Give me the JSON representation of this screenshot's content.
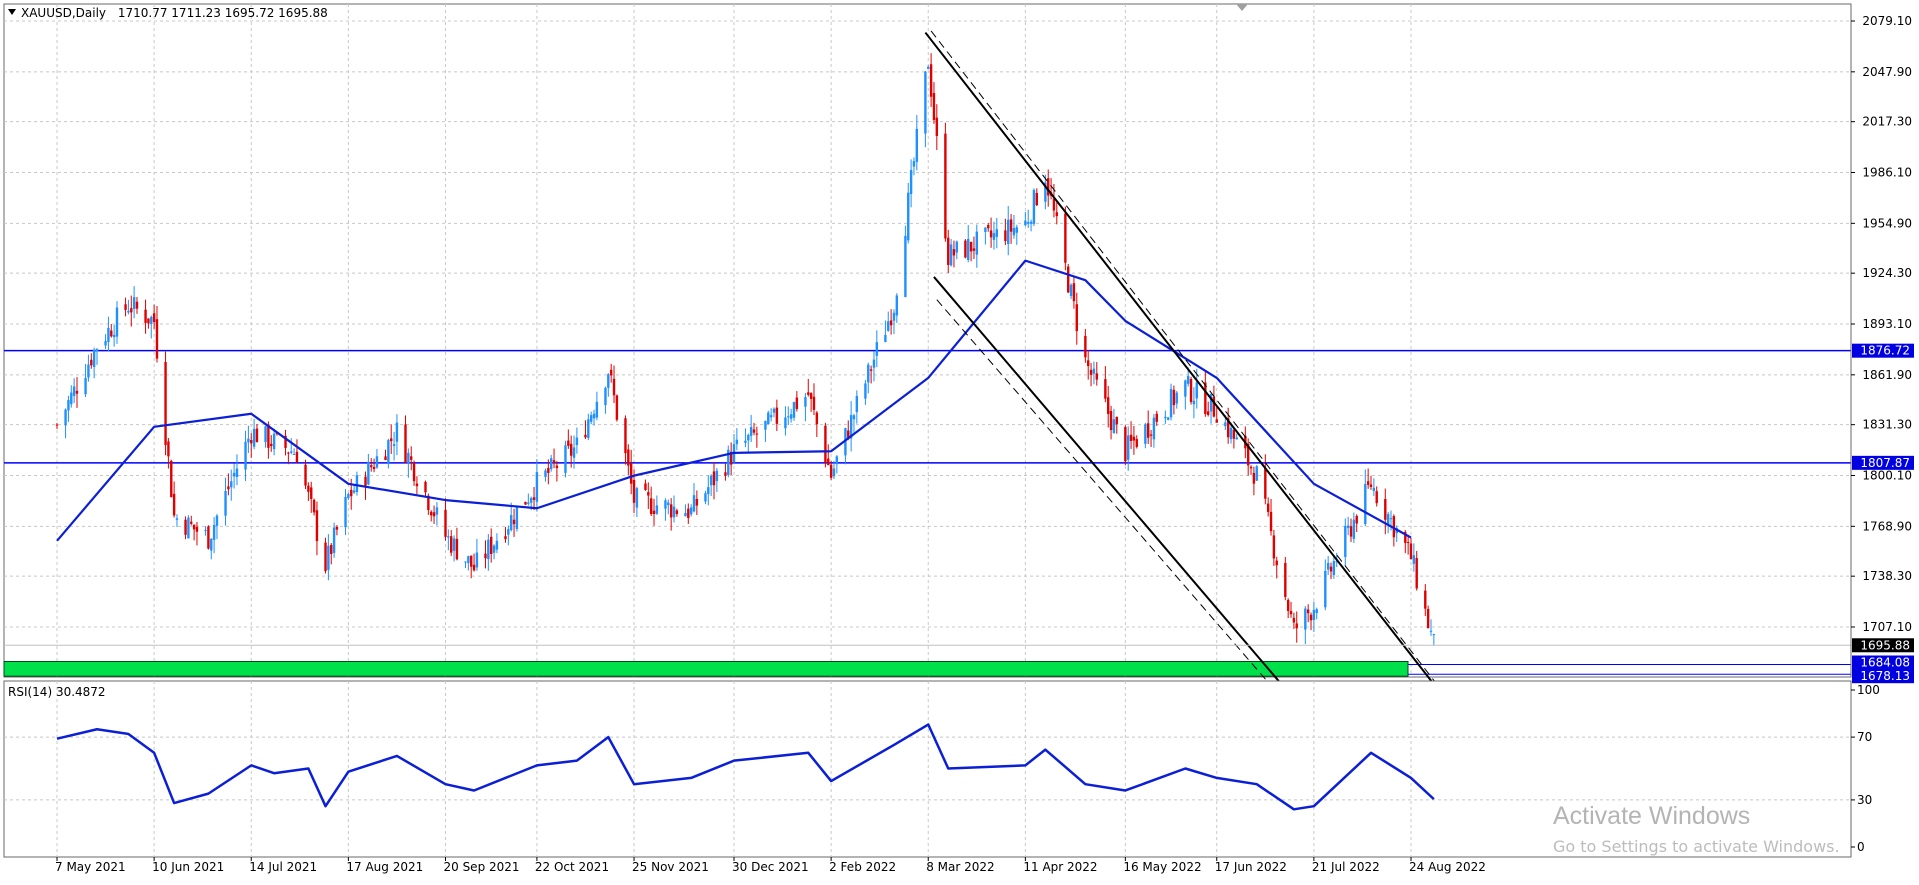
{
  "header": {
    "symbol_label": "XAUUSD,Daily",
    "ohlc": "1710.77 1711.23 1695.72 1695.88"
  },
  "rsi_panel": {
    "label": "RSI(14) 30.4872"
  },
  "watermark": {
    "title": "Activate Windows",
    "subtitle": "Go to Settings to activate Windows."
  },
  "colors": {
    "bull": "#1e90ff",
    "bear": "#e00000",
    "ma": "#0b1fd6",
    "level_line": "#0000ff",
    "channel": "#000000",
    "support_zone": "#00e04a",
    "rsi": "#0b1fd6",
    "grid": "#c8c8c8",
    "price_tag_bg": "#0000e0",
    "current_tag_bg": "#000000"
  },
  "chart_data": [
    {
      "type": "candlestick",
      "symbol": "XAUUSD",
      "timeframe": "Daily",
      "ylim": [
        1665,
        2090
      ],
      "y_ticks": [
        2079.1,
        2047.9,
        2017.3,
        1986.1,
        1954.9,
        1924.3,
        1893.1,
        1861.9,
        1831.3,
        1800.1,
        1768.9,
        1738.3,
        1707.1
      ],
      "x_ticks": [
        "7 May 2021",
        "10 Jun 2021",
        "14 Jul 2021",
        "17 Aug 2021",
        "20 Sep 2021",
        "22 Oct 2021",
        "25 Nov 2021",
        "30 Dec 2021",
        "2 Feb 2022",
        "8 Mar 2022",
        "11 Apr 2022",
        "16 May 2022",
        "17 Jun 2022",
        "21 Jul 2022",
        "24 Aug 2022"
      ],
      "close_path": [
        {
          "date": "2021-05-07",
          "close": 1831
        },
        {
          "date": "2021-05-21",
          "close": 1880
        },
        {
          "date": "2021-06-01",
          "close": 1905
        },
        {
          "date": "2021-06-10",
          "close": 1895
        },
        {
          "date": "2021-06-17",
          "close": 1775
        },
        {
          "date": "2021-06-29",
          "close": 1762
        },
        {
          "date": "2021-07-14",
          "close": 1827
        },
        {
          "date": "2021-07-30",
          "close": 1814
        },
        {
          "date": "2021-08-09",
          "close": 1745
        },
        {
          "date": "2021-08-17",
          "close": 1787
        },
        {
          "date": "2021-09-03",
          "close": 1827
        },
        {
          "date": "2021-09-20",
          "close": 1763
        },
        {
          "date": "2021-09-30",
          "close": 1743
        },
        {
          "date": "2021-10-22",
          "close": 1795
        },
        {
          "date": "2021-11-05",
          "close": 1818
        },
        {
          "date": "2021-11-16",
          "close": 1865
        },
        {
          "date": "2021-11-25",
          "close": 1785
        },
        {
          "date": "2021-12-15",
          "close": 1778
        },
        {
          "date": "2021-12-30",
          "close": 1815
        },
        {
          "date": "2022-01-25",
          "close": 1850
        },
        {
          "date": "2022-02-02",
          "close": 1800
        },
        {
          "date": "2022-02-24",
          "close": 1905
        },
        {
          "date": "2022-03-08",
          "close": 2055
        },
        {
          "date": "2022-03-15",
          "close": 1935
        },
        {
          "date": "2022-04-11",
          "close": 1955
        },
        {
          "date": "2022-04-18",
          "close": 1985
        },
        {
          "date": "2022-05-02",
          "close": 1870
        },
        {
          "date": "2022-05-16",
          "close": 1815
        },
        {
          "date": "2022-06-06",
          "close": 1855
        },
        {
          "date": "2022-06-17",
          "close": 1840
        },
        {
          "date": "2022-07-01",
          "close": 1800
        },
        {
          "date": "2022-07-14",
          "close": 1705
        },
        {
          "date": "2022-07-21",
          "close": 1720
        },
        {
          "date": "2022-08-10",
          "close": 1795
        },
        {
          "date": "2022-08-24",
          "close": 1750
        },
        {
          "date": "2022-09-01",
          "close": 1695.88
        }
      ],
      "moving_average": [
        {
          "date": "2021-05-07",
          "value": 1760
        },
        {
          "date": "2021-06-10",
          "value": 1830
        },
        {
          "date": "2021-07-14",
          "value": 1838
        },
        {
          "date": "2021-08-17",
          "value": 1795
        },
        {
          "date": "2021-09-20",
          "value": 1785
        },
        {
          "date": "2021-10-22",
          "value": 1780
        },
        {
          "date": "2021-11-25",
          "value": 1800
        },
        {
          "date": "2021-12-30",
          "value": 1814
        },
        {
          "date": "2022-02-02",
          "value": 1815
        },
        {
          "date": "2022-03-08",
          "value": 1860
        },
        {
          "date": "2022-04-11",
          "value": 1932
        },
        {
          "date": "2022-05-02",
          "value": 1920
        },
        {
          "date": "2022-05-16",
          "value": 1895
        },
        {
          "date": "2022-06-17",
          "value": 1860
        },
        {
          "date": "2022-07-21",
          "value": 1795
        },
        {
          "date": "2022-08-24",
          "value": 1762
        }
      ],
      "horizontal_levels": [
        1876.72,
        1807.87
      ],
      "support_zone": [
        1678.13,
        1684.08
      ],
      "price_tags": [
        {
          "value": 1876.72,
          "label": "1876.72",
          "style": "level"
        },
        {
          "value": 1807.87,
          "label": "1807.87",
          "style": "level"
        },
        {
          "value": 1695.88,
          "label": "1695.88",
          "style": "current"
        },
        {
          "value": 1684.08,
          "label": "1684.08",
          "style": "level"
        },
        {
          "value": 1678.13,
          "label": "1678.13",
          "style": "level"
        }
      ],
      "channel_lines": [
        {
          "from": {
            "date": "2022-03-07",
            "price": 2072
          },
          "to": {
            "date": "2022-09-05",
            "price": 1663
          },
          "style": "solid"
        },
        {
          "from": {
            "date": "2022-03-10",
            "price": 1922
          },
          "to": {
            "date": "2022-07-14",
            "price": 1663
          },
          "style": "solid"
        },
        {
          "from": {
            "date": "2022-03-09",
            "price": 2073
          },
          "to": {
            "date": "2022-09-06",
            "price": 1663
          },
          "style": "dashed"
        },
        {
          "from": {
            "date": "2022-03-11",
            "price": 1908
          },
          "to": {
            "date": "2022-07-10",
            "price": 1663
          },
          "style": "dashed"
        }
      ]
    },
    {
      "type": "line",
      "indicator": "RSI(14)",
      "ylim": [
        0,
        100
      ],
      "y_ticks": [
        100,
        70,
        30,
        0
      ],
      "series": [
        {
          "values": [
            {
              "date": "2021-05-07",
              "value": 69
            },
            {
              "date": "2021-05-21",
              "value": 75
            },
            {
              "date": "2021-06-01",
              "value": 72
            },
            {
              "date": "2021-06-10",
              "value": 60
            },
            {
              "date": "2021-06-17",
              "value": 28
            },
            {
              "date": "2021-06-29",
              "value": 34
            },
            {
              "date": "2021-07-14",
              "value": 52
            },
            {
              "date": "2021-07-22",
              "value": 47
            },
            {
              "date": "2021-08-03",
              "value": 50
            },
            {
              "date": "2021-08-09",
              "value": 26
            },
            {
              "date": "2021-08-17",
              "value": 48
            },
            {
              "date": "2021-09-03",
              "value": 58
            },
            {
              "date": "2021-09-20",
              "value": 40
            },
            {
              "date": "2021-09-30",
              "value": 36
            },
            {
              "date": "2021-10-22",
              "value": 52
            },
            {
              "date": "2021-11-05",
              "value": 55
            },
            {
              "date": "2021-11-16",
              "value": 70
            },
            {
              "date": "2021-11-25",
              "value": 40
            },
            {
              "date": "2021-12-15",
              "value": 44
            },
            {
              "date": "2021-12-30",
              "value": 55
            },
            {
              "date": "2022-01-25",
              "value": 60
            },
            {
              "date": "2022-02-02",
              "value": 42
            },
            {
              "date": "2022-02-24",
              "value": 65
            },
            {
              "date": "2022-03-08",
              "value": 78
            },
            {
              "date": "2022-03-15",
              "value": 50
            },
            {
              "date": "2022-04-11",
              "value": 52
            },
            {
              "date": "2022-04-18",
              "value": 62
            },
            {
              "date": "2022-05-02",
              "value": 40
            },
            {
              "date": "2022-05-16",
              "value": 36
            },
            {
              "date": "2022-06-06",
              "value": 50
            },
            {
              "date": "2022-06-17",
              "value": 44
            },
            {
              "date": "2022-07-01",
              "value": 40
            },
            {
              "date": "2022-07-14",
              "value": 24
            },
            {
              "date": "2022-07-21",
              "value": 26
            },
            {
              "date": "2022-08-10",
              "value": 60
            },
            {
              "date": "2022-08-24",
              "value": 44
            },
            {
              "date": "2022-09-01",
              "value": 30.4872
            }
          ]
        }
      ]
    }
  ]
}
